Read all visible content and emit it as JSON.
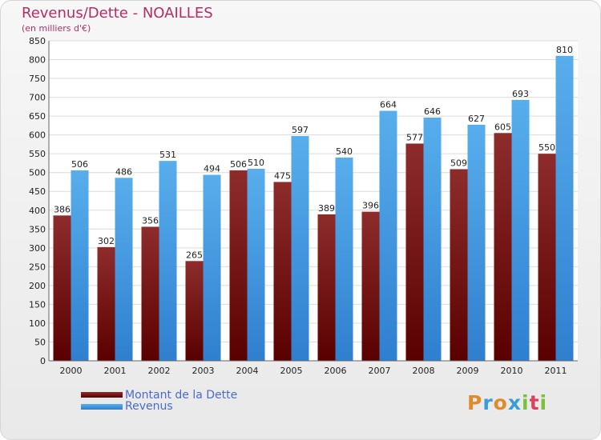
{
  "header": {
    "title": "Revenus/Dette - NOAILLES",
    "subtitle": "(en milliers d'€)"
  },
  "chart_data": {
    "type": "bar",
    "categories": [
      "2000",
      "2001",
      "2002",
      "2003",
      "2004",
      "2005",
      "2006",
      "2007",
      "2008",
      "2009",
      "2010",
      "2011"
    ],
    "series": [
      {
        "name": "Montant de la Dette",
        "color": "#7a1717",
        "values": [
          386,
          302,
          356,
          265,
          506,
          475,
          389,
          396,
          577,
          509,
          605,
          550
        ]
      },
      {
        "name": "Revenus",
        "color": "#4aa1e6",
        "values": [
          506,
          486,
          531,
          494,
          510,
          597,
          540,
          664,
          646,
          627,
          693,
          810
        ]
      }
    ],
    "ylim": [
      0,
      850
    ],
    "yticks": [
      0,
      50,
      100,
      150,
      200,
      250,
      300,
      350,
      400,
      450,
      500,
      550,
      600,
      650,
      700,
      750,
      800,
      850
    ],
    "grid": true,
    "legend_position": "bottom-left"
  },
  "legend": {
    "dette_label": "Montant de la Dette",
    "revenus_label": "Revenus",
    "dette_color": "#6b0f0f",
    "revenus_color": "#4aa1e6"
  },
  "logo": {
    "letters": [
      "P",
      "r",
      "o",
      "x",
      "i",
      "t",
      "i"
    ],
    "colors": [
      "#e08a2c",
      "#3a9bd8",
      "#e08a2c",
      "#3a9bd8",
      "#7bbf3a",
      "#e04060",
      "#7bbf3a"
    ]
  }
}
